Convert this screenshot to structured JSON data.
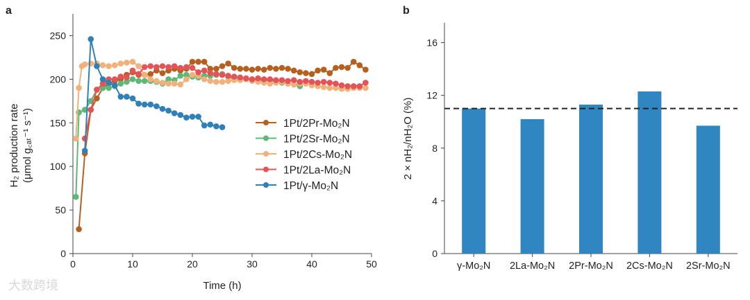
{
  "chart_data": [
    {
      "type": "line",
      "panel_label": "a",
      "xlabel": "Time (h)",
      "ylabel_line1": "H₂ production rate",
      "ylabel_line2": "(μmol g꜀ₐₜ⁻¹ s⁻¹)",
      "xlim": [
        0,
        50
      ],
      "ylim": [
        0,
        275
      ],
      "xticks": [
        0,
        10,
        20,
        30,
        40,
        50
      ],
      "yticks": [
        0,
        50,
        100,
        150,
        200,
        250
      ],
      "legend_position": "center-right",
      "series": [
        {
          "name": "1Pt/2Pr-Mo₂N",
          "color": "#b5601e",
          "x": [
            1,
            2,
            3,
            4,
            5,
            6,
            7,
            8,
            9,
            10,
            11,
            12,
            13,
            14,
            15,
            16,
            17,
            18,
            19,
            20,
            21,
            22,
            23,
            24,
            25,
            26,
            27,
            28,
            29,
            30,
            31,
            32,
            33,
            34,
            35,
            36,
            37,
            38,
            39,
            40,
            41,
            42,
            43,
            44,
            45,
            46,
            47,
            48,
            49
          ],
          "y": [
            28,
            115,
            165,
            178,
            190,
            195,
            198,
            200,
            205,
            208,
            205,
            205,
            206,
            210,
            207,
            210,
            212,
            210,
            212,
            220,
            220,
            220,
            212,
            212,
            215,
            218,
            213,
            212,
            212,
            211,
            212,
            211,
            213,
            212,
            213,
            212,
            210,
            208,
            207,
            206,
            210,
            211,
            207,
            213,
            214,
            213,
            220,
            216,
            211
          ]
        },
        {
          "name": "1Pt/2Sr-Mo₂N",
          "color": "#5fb878",
          "x": [
            0.5,
            1,
            2,
            3,
            4,
            5,
            6,
            7,
            8,
            9,
            10,
            11,
            12,
            13,
            14,
            15,
            16,
            17,
            18,
            19,
            20,
            21,
            22,
            23,
            24,
            25,
            26,
            27,
            28,
            29,
            30,
            31,
            32,
            33,
            34,
            35,
            36,
            37,
            38
          ],
          "y": [
            65,
            162,
            165,
            175,
            188,
            190,
            190,
            192,
            195,
            197,
            200,
            198,
            198,
            198,
            197,
            195,
            200,
            199,
            204,
            205,
            203,
            202,
            204,
            204,
            205,
            206,
            203,
            200,
            200,
            201,
            200,
            199,
            198,
            199,
            197,
            196,
            195,
            194,
            192
          ]
        },
        {
          "name": "1Pt/2Cs-Mo₂N",
          "color": "#f0b27a",
          "x": [
            0.5,
            1,
            1.5,
            2,
            3,
            4,
            5,
            6,
            7,
            8,
            9,
            10,
            11,
            12,
            13,
            14,
            15,
            16,
            17,
            18,
            19,
            20,
            21,
            22,
            23,
            24,
            25,
            26,
            27,
            28,
            29,
            30,
            31,
            32,
            33,
            34,
            35,
            36,
            37,
            38,
            39,
            40,
            41,
            42,
            43,
            44,
            45,
            46,
            47,
            48,
            49
          ],
          "y": [
            132,
            190,
            215,
            217,
            218,
            218,
            216,
            215,
            216,
            218,
            219,
            220,
            215,
            205,
            200,
            198,
            196,
            195,
            195,
            194,
            200,
            205,
            204,
            200,
            198,
            197,
            197,
            198,
            199,
            199,
            200,
            198,
            197,
            196,
            195,
            196,
            197,
            195,
            194,
            195,
            195,
            193,
            192,
            191,
            190,
            190,
            189,
            189,
            190,
            190,
            190
          ]
        },
        {
          "name": "1Pt/2La-Mo₂N",
          "color": "#e25457",
          "x": [
            2,
            3,
            4,
            5,
            6,
            7,
            8,
            9,
            10,
            11,
            12,
            13,
            14,
            15,
            16,
            17,
            18,
            19,
            20,
            21,
            22,
            23,
            24,
            25,
            26,
            27,
            28,
            29,
            30,
            31,
            32,
            33,
            34,
            35,
            36,
            37,
            38,
            39,
            40,
            41,
            42,
            43,
            44,
            45,
            46,
            47,
            48,
            49
          ],
          "y": [
            132,
            165,
            188,
            195,
            200,
            200,
            203,
            202,
            210,
            206,
            214,
            215,
            214,
            215,
            214,
            215,
            213,
            214,
            213,
            208,
            210,
            207,
            206,
            205,
            204,
            203,
            202,
            201,
            200,
            201,
            200,
            200,
            199,
            199,
            198,
            199,
            197,
            198,
            197,
            196,
            197,
            196,
            195,
            193,
            192,
            192,
            192,
            196
          ]
        },
        {
          "name": "1Pt/γ-Mo₂N",
          "color": "#2f80b9",
          "x": [
            2,
            3,
            4,
            5,
            6,
            7,
            8,
            9,
            10,
            11,
            12,
            13,
            14,
            15,
            16,
            17,
            18,
            19,
            20,
            21,
            22,
            23,
            24,
            25
          ],
          "y": [
            118,
            246,
            215,
            200,
            196,
            193,
            180,
            180,
            178,
            172,
            171,
            171,
            169,
            166,
            164,
            161,
            159,
            156,
            157,
            157,
            147,
            148,
            146,
            145
          ]
        }
      ]
    },
    {
      "type": "bar",
      "panel_label": "b",
      "ylabel": "2 × nH₂/nH₂O (%)",
      "ylim": [
        0,
        17.5
      ],
      "yticks": [
        0,
        4,
        8,
        12,
        16
      ],
      "categories": [
        "γ-Mo₂N",
        "2La-Mo₂N",
        "2Pr-Mo₂N",
        "2Cs-Mo₂N",
        "2Sr-Mo₂N"
      ],
      "values": [
        11.0,
        10.2,
        11.3,
        12.3,
        9.7
      ],
      "bar_color": "#2f86c1",
      "reference_line": 11.0
    }
  ],
  "watermark": "大数跨境"
}
